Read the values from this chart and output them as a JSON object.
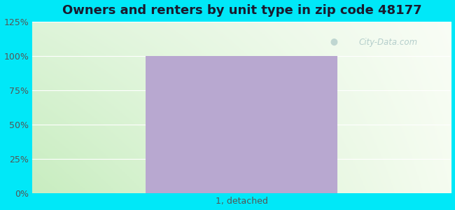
{
  "title": "Owners and renters by unit type in zip code 48177",
  "title_fontsize": 13,
  "title_fontweight": "bold",
  "categories": [
    "1, detached"
  ],
  "values": [
    100
  ],
  "bar_color": "#b8a8d0",
  "bar_width": 0.55,
  "ylim": [
    0,
    125
  ],
  "yticks": [
    0,
    25,
    50,
    75,
    100,
    125
  ],
  "ytick_labels": [
    "0%",
    "25%",
    "50%",
    "75%",
    "100%",
    "125%"
  ],
  "outer_bg": "#00e8f8",
  "grad_left": "#c8edc0",
  "grad_right": "#f0f8ee",
  "watermark_text": "City-Data.com",
  "title_color": "#1a1a2e",
  "tick_color": "#555555",
  "xlabel_fontsize": 9,
  "ytick_fontsize": 9
}
